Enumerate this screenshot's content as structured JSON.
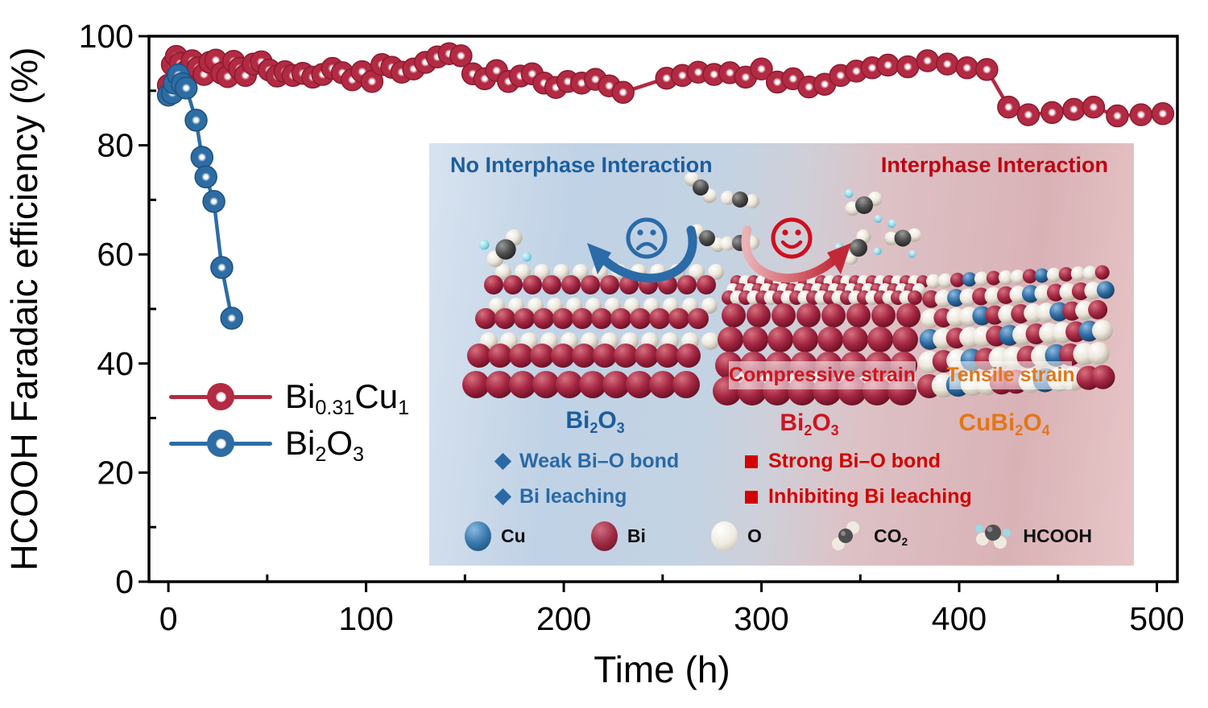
{
  "colors": {
    "series_red": "#b32a43",
    "series_red_edge": "#8a1b30",
    "series_blue": "#2e6ca4",
    "series_blue_edge": "#1c527d",
    "title_blue": "#1b5e9e",
    "title_red": "#c00010",
    "strain_red": "#d01420",
    "strain_orange": "#e2761b",
    "bullet_blue": "#2a69a5",
    "bullet_red": "#d40000",
    "axis": "#000000"
  },
  "chart_data": {
    "type": "line",
    "title": "",
    "xlabel": "Time (h)",
    "ylabel": "HCOOH Faradaic efficiency (%)",
    "xlim": [
      -10,
      510
    ],
    "ylim": [
      0,
      100
    ],
    "x_ticks": [
      0,
      100,
      200,
      300,
      400,
      500
    ],
    "x_minor_ticks": [
      50,
      150,
      250,
      350,
      450
    ],
    "y_ticks": [
      0,
      20,
      40,
      60,
      80,
      100
    ],
    "y_minor_ticks": [
      10,
      30,
      50,
      70,
      90
    ],
    "grid": false,
    "legend_position": "left-middle",
    "series": [
      {
        "name": "Bi0.31Cu1",
        "color": "#b32a43",
        "edge": "#8a1b30",
        "points": [
          [
            0,
            91
          ],
          [
            2,
            94.8
          ],
          [
            4,
            96.3
          ],
          [
            6,
            95
          ],
          [
            9,
            93.6
          ],
          [
            12,
            95.5
          ],
          [
            15,
            94.2
          ],
          [
            18,
            93
          ],
          [
            21,
            95.2
          ],
          [
            24,
            95.6
          ],
          [
            27,
            93.2
          ],
          [
            30,
            92.6
          ],
          [
            33,
            95.4
          ],
          [
            36,
            94.1
          ],
          [
            39,
            92.8
          ],
          [
            43,
            94.9
          ],
          [
            47,
            95.3
          ],
          [
            51,
            93.8
          ],
          [
            55,
            92.7
          ],
          [
            59,
            93.5
          ],
          [
            63,
            92.8
          ],
          [
            68,
            93.2
          ],
          [
            73,
            92.5
          ],
          [
            78,
            93
          ],
          [
            83,
            94.1
          ],
          [
            88,
            93.3
          ],
          [
            93,
            92
          ],
          [
            98,
            93.5
          ],
          [
            103,
            91.7
          ],
          [
            108,
            94.8
          ],
          [
            113,
            94.3
          ],
          [
            118,
            93.4
          ],
          [
            124,
            94
          ],
          [
            130,
            95.2
          ],
          [
            136,
            96.2
          ],
          [
            142,
            96.8
          ],
          [
            148,
            96.4
          ],
          [
            154,
            93.1
          ],
          [
            160,
            92.2
          ],
          [
            166,
            93.7
          ],
          [
            172,
            91.7
          ],
          [
            178,
            92.7
          ],
          [
            184,
            93.1
          ],
          [
            190,
            91.4
          ],
          [
            196,
            90.6
          ],
          [
            202,
            91.7
          ],
          [
            209,
            91.4
          ],
          [
            216,
            92.1
          ],
          [
            223,
            90.9
          ],
          [
            230,
            89.7
          ],
          [
            252,
            92.3
          ],
          [
            260,
            92.8
          ],
          [
            268,
            93.4
          ],
          [
            276,
            93
          ],
          [
            284,
            93.3
          ],
          [
            292,
            92.5
          ],
          [
            300,
            94
          ],
          [
            308,
            91.6
          ],
          [
            316,
            92.2
          ],
          [
            324,
            90.7
          ],
          [
            332,
            91.2
          ],
          [
            340,
            92.8
          ],
          [
            348,
            93.6
          ],
          [
            356,
            94.2
          ],
          [
            364,
            94.7
          ],
          [
            374,
            94.4
          ],
          [
            384,
            95.5
          ],
          [
            394,
            94.9
          ],
          [
            404,
            94.2
          ],
          [
            414,
            93.9
          ],
          [
            425,
            87
          ],
          [
            435,
            85.6
          ],
          [
            447,
            86
          ],
          [
            458,
            86.6
          ],
          [
            468,
            87
          ],
          [
            480,
            85.4
          ],
          [
            492,
            85.6
          ],
          [
            503,
            85.8
          ]
        ]
      },
      {
        "name": "Bi2O3",
        "color": "#2e6ca4",
        "edge": "#1c527d",
        "points": [
          [
            0,
            89.2
          ],
          [
            2,
            89.6
          ],
          [
            3,
            91.4
          ],
          [
            5,
            92.9
          ],
          [
            7,
            91.3
          ],
          [
            9,
            90.5
          ],
          [
            14,
            84.6
          ],
          [
            17,
            77.8
          ],
          [
            19,
            74.2
          ],
          [
            23,
            69.7
          ],
          [
            27,
            57.6
          ],
          [
            32,
            48.3
          ]
        ]
      }
    ]
  },
  "legend": {
    "items": [
      {
        "series": "red",
        "formula": [
          [
            "t",
            "Bi"
          ],
          [
            "s",
            "0.31"
          ],
          [
            "t",
            "Cu"
          ],
          [
            "s",
            "1"
          ]
        ]
      },
      {
        "series": "blue",
        "formula": [
          [
            "t",
            "Bi"
          ],
          [
            "s",
            "2"
          ],
          [
            "t",
            "O"
          ],
          [
            "s",
            "3"
          ]
        ]
      }
    ]
  },
  "inset": {
    "left_title": "No Interphase Interaction",
    "right_title": "Interphase Interaction",
    "compressive_label": "Compressive strain",
    "tensile_label": "Tensile strain",
    "left_crystal_formula": [
      [
        "t",
        "Bi"
      ],
      [
        "s",
        "2"
      ],
      [
        "t",
        "O"
      ],
      [
        "s",
        "3"
      ]
    ],
    "mid_crystal_formula": [
      [
        "t",
        "Bi"
      ],
      [
        "s",
        "2"
      ],
      [
        "t",
        "O"
      ],
      [
        "s",
        "3"
      ]
    ],
    "right_crystal_formula": [
      [
        "t",
        "CuBi"
      ],
      [
        "s",
        "2"
      ],
      [
        "t",
        "O"
      ],
      [
        "s",
        "4"
      ]
    ],
    "left_bullets": {
      "0": "Weak Bi–O bond",
      "1": "Bi leaching"
    },
    "right_bullets": {
      "0": "Strong Bi–O bond",
      "1": "Inhibiting Bi leaching"
    },
    "legend": {
      "cu_label": "Cu",
      "bi_label": "Bi",
      "o_label": "O",
      "co2_formula": [
        [
          "t",
          "CO"
        ],
        [
          "s",
          "2"
        ]
      ],
      "hcooh_label": "HCOOH"
    }
  }
}
